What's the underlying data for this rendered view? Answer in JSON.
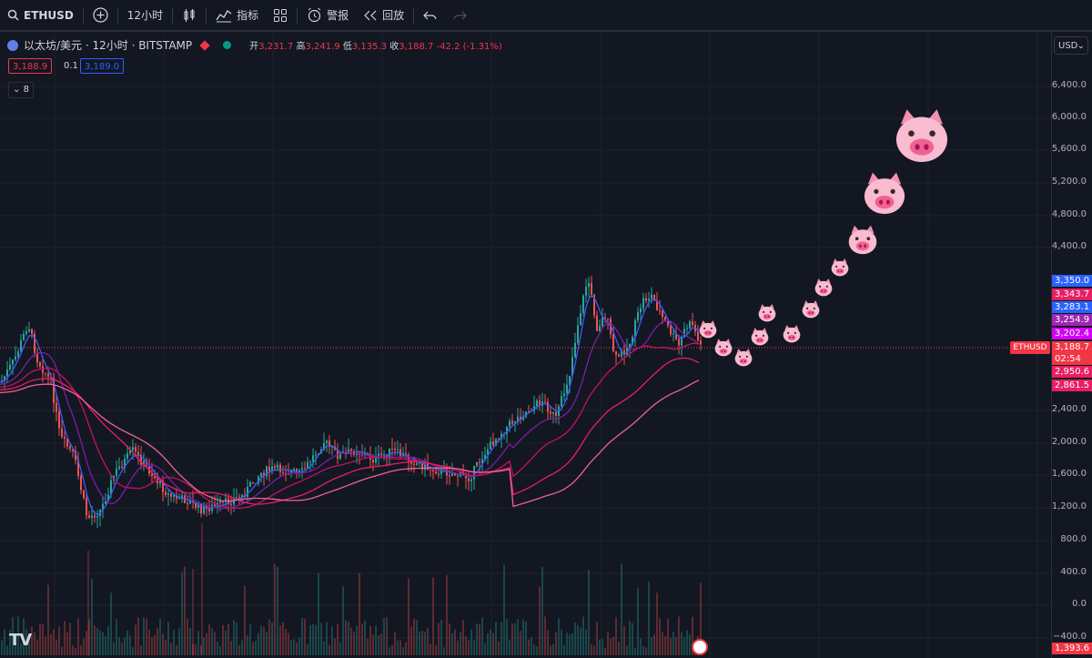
{
  "toolbar": {
    "symbol": "ETHUSD",
    "interval": "12小时",
    "indicators_label": "指标",
    "alerts_label": "警报",
    "replay_label": "回放"
  },
  "legend": {
    "title": "以太坊/美元 · 12小时 · BITSTAMP",
    "open_label": "开",
    "open": "3,231.7",
    "high_label": "高",
    "high": "3,241.9",
    "low_label": "低",
    "low": "3,135.3",
    "close_label": "收",
    "close": "3,188.7",
    "change": "-42.2 (-1.31%)",
    "sell_price": "3,188.9",
    "spread": "0.1",
    "buy_price": "3,189.0",
    "collapsed_count": "8"
  },
  "currency": "USD",
  "y_ticks": [
    "6,400.0",
    "6,000.0",
    "5,600.0",
    "5,200.0",
    "4,800.0",
    "4,400.0",
    "2,400.0",
    "2,000.0",
    "1,600.0",
    "1,200.0",
    "800.0",
    "400.0",
    "0.0",
    "−400.0"
  ],
  "price_tags": [
    {
      "value": "3,350.0",
      "color": "#2962ff"
    },
    {
      "value": "3,343.7",
      "color": "#e91e63"
    },
    {
      "value": "3,283.1",
      "color": "#2962ff"
    },
    {
      "value": "3,254.9",
      "color": "#9c27b0"
    },
    {
      "value": "3,202.4",
      "color": "#d500f9"
    },
    {
      "value": "3,188.7",
      "color": "#f23645"
    },
    {
      "value": "02:54",
      "color": "#f23645"
    },
    {
      "value": "2,950.6",
      "color": "#e91e63"
    },
    {
      "value": "2,861.5",
      "color": "#e91e63"
    },
    {
      "value": "1,393.6",
      "color": "#f23645"
    }
  ],
  "symbol_tag": "ETHUSD",
  "icons": [
    "search-icon",
    "plus-circle-icon",
    "candles-icon",
    "indicators-icon",
    "layout-icon",
    "alarm-icon",
    "replay-icon",
    "undo-icon",
    "redo-icon",
    "tradingview-logo",
    "pig-emoji",
    "flag-icon"
  ],
  "colors": {
    "background": "#131722",
    "up": "#26a69a",
    "down": "#ef5350",
    "accent": "#2962ff"
  }
}
